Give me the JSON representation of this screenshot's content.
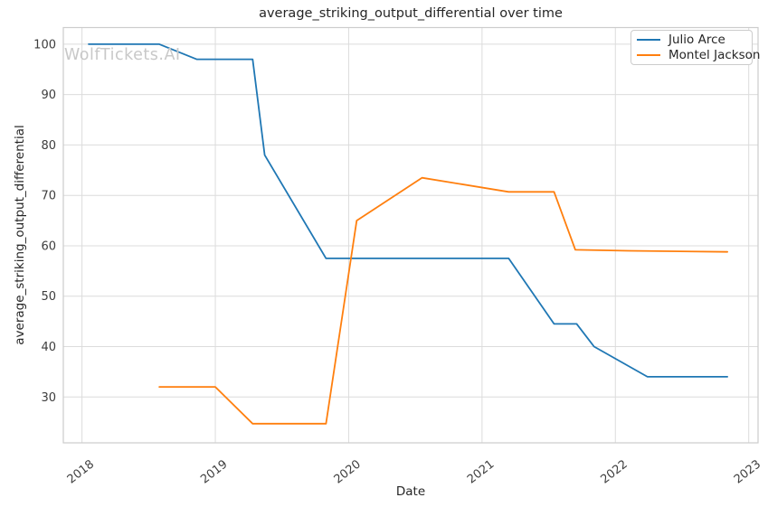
{
  "watermark": "WolfTickets.AI",
  "chart_data": {
    "type": "line",
    "title": "average_striking_output_differential over time",
    "xlabel": "Date",
    "ylabel": "average_striking_output_differential",
    "xlim": [
      2017.86,
      2023.07
    ],
    "ylim": [
      20.9,
      103.3
    ],
    "xticks": [
      2018,
      2019,
      2020,
      2021,
      2022,
      2023
    ],
    "xtick_labels": [
      "2018",
      "2019",
      "2020",
      "2021",
      "2022",
      "2023"
    ],
    "yticks": [
      30,
      40,
      50,
      60,
      70,
      80,
      90,
      100
    ],
    "ytick_labels": [
      "30",
      "40",
      "50",
      "60",
      "70",
      "80",
      "90",
      "100"
    ],
    "grid": true,
    "legend_position": "upper right",
    "colors": {
      "grid": "#dcdcdc",
      "spine": "#cccccc",
      "tick_text": "#3d3d3d",
      "title_text": "#262626",
      "watermark": "#c8c8c8"
    },
    "series": [
      {
        "name": "Julio Arce",
        "color": "#1f77b4",
        "x": [
          2018.05,
          2018.58,
          2018.86,
          2019.28,
          2019.37,
          2019.83,
          2021.2,
          2021.54,
          2021.71,
          2021.84,
          2022.24,
          2022.84
        ],
        "y": [
          100,
          100,
          97,
          97,
          78,
          57.5,
          57.5,
          44.5,
          44.5,
          40,
          34,
          34
        ]
      },
      {
        "name": "Montel Jackson",
        "color": "#ff7f0e",
        "x": [
          2018.58,
          2019.0,
          2019.28,
          2019.83,
          2020.06,
          2020.55,
          2021.2,
          2021.54,
          2021.7,
          2022.1,
          2022.84
        ],
        "y": [
          32,
          32,
          24.7,
          24.7,
          65,
          73.5,
          70.7,
          70.7,
          59.2,
          59,
          58.8
        ]
      }
    ]
  }
}
